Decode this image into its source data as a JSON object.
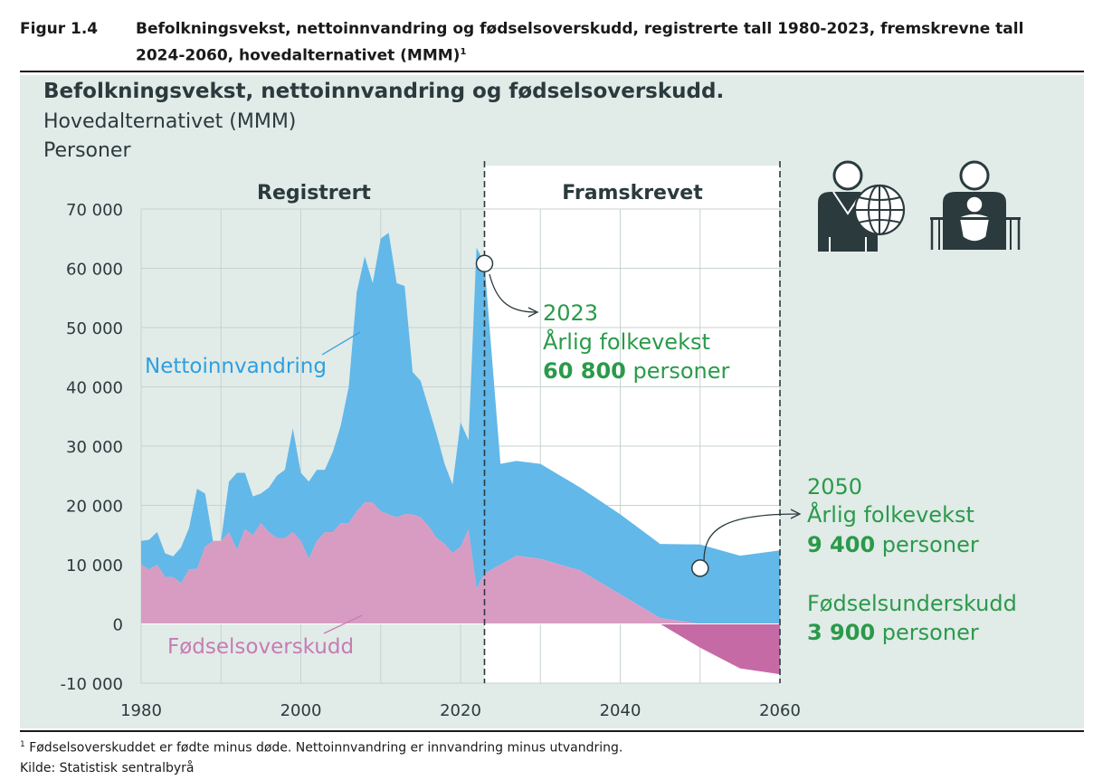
{
  "figure": {
    "number": "Figur 1.4",
    "title": "Befolkningsvekst, nettoinnvandring og fødselsoverskudd, registrerte tall 1980-2023, fremskrevne tall 2024-2060, hovedalternativet (MMM)",
    "title_sup": "1"
  },
  "chart_data": {
    "type": "area",
    "title": "Befolkningsvekst, nettoinnvandring og fødselsoverskudd.",
    "subtitle": "Hovedalternativet (MMM)",
    "ylabel": "Personer",
    "xlabel": "",
    "xlim": [
      1980,
      2060
    ],
    "ylim": [
      -10000,
      70000
    ],
    "x_ticks": [
      1980,
      2000,
      2020,
      2040,
      2060
    ],
    "x_tick_labels": [
      "1980",
      "2000",
      "2020",
      "2040",
      "2060"
    ],
    "y_ticks": [
      -10000,
      0,
      10000,
      20000,
      30000,
      40000,
      50000,
      60000,
      70000
    ],
    "y_tick_labels": [
      "-10 000",
      "0",
      "10 000",
      "20 000",
      "30 000",
      "40 000",
      "50 000",
      "60 000",
      "70 000"
    ],
    "grid": true,
    "regions": [
      {
        "label": "Registrert",
        "from": 1980,
        "to": 2023
      },
      {
        "label": "Framskrevet",
        "from": 2023,
        "to": 2060
      }
    ],
    "series": [
      {
        "name": "Fødselsoverskudd",
        "color": "#d89cc2",
        "negative_color": "#c66aa6",
        "x": [
          1980,
          1981,
          1982,
          1983,
          1984,
          1985,
          1986,
          1987,
          1988,
          1989,
          1990,
          1991,
          1992,
          1993,
          1994,
          1995,
          1996,
          1997,
          1998,
          1999,
          2000,
          2001,
          2002,
          2003,
          2004,
          2005,
          2006,
          2007,
          2008,
          2009,
          2010,
          2011,
          2012,
          2013,
          2014,
          2015,
          2016,
          2017,
          2018,
          2019,
          2020,
          2021,
          2022,
          2023,
          2025,
          2027,
          2030,
          2035,
          2040,
          2045,
          2050,
          2055,
          2060
        ],
        "values": [
          10000,
          9200,
          10000,
          7900,
          7900,
          6900,
          9200,
          9300,
          13000,
          15500,
          16000,
          15500,
          12500,
          16000,
          15000,
          17000,
          15500,
          14500,
          14500,
          15500,
          14000,
          11000,
          14000,
          15500,
          15500,
          17000,
          17000,
          19000,
          20500,
          20500,
          19000,
          18500,
          18000,
          18500,
          18500,
          18000,
          16500,
          14500,
          13500,
          12000,
          13000,
          16000,
          6000,
          8500,
          10000,
          11500,
          11000,
          9000,
          5000,
          1000,
          -4000,
          -7500,
          -8500
        ]
      },
      {
        "name": "Nettoinnvandring",
        "color": "#62b8e8",
        "x": [
          1980,
          1981,
          1982,
          1983,
          1984,
          1985,
          1986,
          1987,
          1988,
          1989,
          1990,
          1991,
          1992,
          1993,
          1994,
          1995,
          1996,
          1997,
          1998,
          1999,
          2000,
          2001,
          2002,
          2003,
          2004,
          2005,
          2006,
          2007,
          2008,
          2009,
          2010,
          2011,
          2012,
          2013,
          2014,
          2015,
          2016,
          2017,
          2018,
          2019,
          2020,
          2021,
          2022,
          2023,
          2025,
          2027,
          2030,
          2035,
          2040,
          2045,
          2050,
          2055,
          2060
        ],
        "values": [
          4000,
          5000,
          5500,
          4000,
          3500,
          6000,
          7000,
          13500,
          9000,
          -1500,
          -2000,
          8500,
          13000,
          9500,
          6500,
          5000,
          7500,
          10500,
          11500,
          17500,
          11500,
          13000,
          12000,
          10500,
          13500,
          16500,
          23000,
          37000,
          41500,
          37000,
          46000,
          47500,
          39500,
          38500,
          24000,
          23000,
          20000,
          17500,
          13500,
          11500,
          21000,
          15000,
          57500,
          52300,
          17000,
          16000,
          16000,
          14000,
          13500,
          12500,
          13400,
          11500,
          12400
        ]
      }
    ],
    "callouts": [
      {
        "year": "2023",
        "label": "Årlig folkevekst",
        "value": "60 800",
        "unit": "personer",
        "x": 2023,
        "y": 60800
      },
      {
        "year": "2050",
        "label": "Årlig folkevekst",
        "value": "9 400",
        "unit": "personer",
        "x": 2050,
        "y": 9400
      }
    ],
    "deficit_note": {
      "label": "Fødselsunderskudd",
      "value": "3 900",
      "unit": "personer"
    },
    "series_labels": {
      "netto": "Nettoinnvandring",
      "fodsel": "Fødselsoverskudd"
    },
    "accent_green": "#2a9a4a"
  },
  "footnote": {
    "sup": "1",
    "text": "Fødselsoverskuddet er fødte minus døde. Nettoinnvandring er innvandring minus utvandring."
  },
  "source": "Kilde: Statistisk sentralbyrå"
}
